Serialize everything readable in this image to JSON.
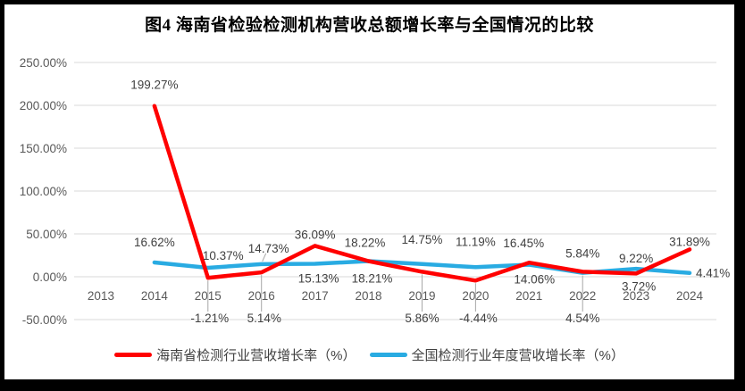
{
  "chart_data": {
    "type": "line",
    "title": "图4 海南省检验检测机构营收总额增长率与全国情况的比较",
    "x_categories": [
      "2013",
      "2014",
      "2015",
      "2016",
      "2017",
      "2018",
      "2019",
      "2020",
      "2021",
      "2022",
      "2023",
      "2024"
    ],
    "y_axis": {
      "min": -50,
      "max": 250,
      "step": 50,
      "tick_labels": [
        "250.00%",
        "200.00%",
        "150.00%",
        "100.00%",
        "50.00%",
        "0.00%",
        "-50.00%"
      ]
    },
    "grid": true,
    "legend_position": "bottom",
    "colors": {
      "grid": "#D9D9D9",
      "axis_text": "#595959",
      "label_text": "#404040",
      "leader": "#A6A6A6",
      "background": "#FFFFFF",
      "frame_border": "#000000"
    },
    "series": [
      {
        "name": "海南省检测行业营收增长率（%）",
        "color": "#FF0000",
        "points": [
          {
            "year": "2014",
            "value": 199.27,
            "label": "199.27%",
            "pos": "above",
            "dy": -9
          },
          {
            "year": "2015",
            "value": -1.21,
            "label": "-1.21%",
            "pos": "callout",
            "dx": 2
          },
          {
            "year": "2016",
            "value": 5.14,
            "label": "5.14%",
            "pos": "callout",
            "dx": 3
          },
          {
            "year": "2017",
            "value": 36.09,
            "label": "36.09%",
            "pos": "above",
            "dy": 2
          },
          {
            "year": "2018",
            "value": 18.22,
            "label": "18.22%",
            "pos": "above",
            "dy": -6,
            "dx": -4
          },
          {
            "year": "2019",
            "value": 5.86,
            "label": "5.86%",
            "pos": "callout"
          },
          {
            "year": "2020",
            "value": -4.44,
            "label": "-4.44%",
            "pos": "callout",
            "dx": 3
          },
          {
            "year": "2021",
            "value": 16.45,
            "label": "16.45%",
            "pos": "above",
            "dy": -7,
            "dx": -6
          },
          {
            "year": "2022",
            "value": 5.84,
            "label": "5.84%",
            "pos": "above",
            "dy": -6
          },
          {
            "year": "2023",
            "value": 3.72,
            "label": "3.72%",
            "pos": "below",
            "dy": -2,
            "dx": 3
          },
          {
            "year": "2024",
            "value": 31.89,
            "label": "31.89%",
            "pos": "above",
            "dy": 6
          }
        ]
      },
      {
        "name": "全国检测行业年度营收增长率（%）",
        "color": "#29ABE2",
        "points": [
          {
            "year": "2014",
            "value": 16.62,
            "label": "16.62%",
            "pos": "above",
            "dy": -8
          },
          {
            "year": "2015",
            "value": 10.37,
            "label": "10.37%",
            "pos": "above",
            "dx": 17,
            "dy": 1
          },
          {
            "year": "2016",
            "value": 14.73,
            "label": "14.73%",
            "pos": "above",
            "dx": 8,
            "dy": -3,
            "leader": "diag"
          },
          {
            "year": "2017",
            "value": 15.13,
            "label": "15.13%",
            "pos": "below",
            "dx": 4
          },
          {
            "year": "2018",
            "value": 18.21,
            "label": "18.21%",
            "pos": "below",
            "dx": 4,
            "dy": 3
          },
          {
            "year": "2019",
            "value": 14.75,
            "label": "14.75%",
            "pos": "above",
            "dy": -13
          },
          {
            "year": "2020",
            "value": 11.19,
            "label": "11.19%",
            "pos": "above",
            "dy": -14
          },
          {
            "year": "2021",
            "value": 14.06,
            "label": "14.06%",
            "pos": "below",
            "dx": 6
          },
          {
            "year": "2022",
            "value": 4.54,
            "label": "4.54%",
            "pos": "callout"
          },
          {
            "year": "2023",
            "value": 9.22,
            "label": "9.22%",
            "pos": "above",
            "dy": 3
          },
          {
            "year": "2024",
            "value": 4.41,
            "label": "4.41%",
            "pos": "right"
          }
        ]
      }
    ]
  }
}
